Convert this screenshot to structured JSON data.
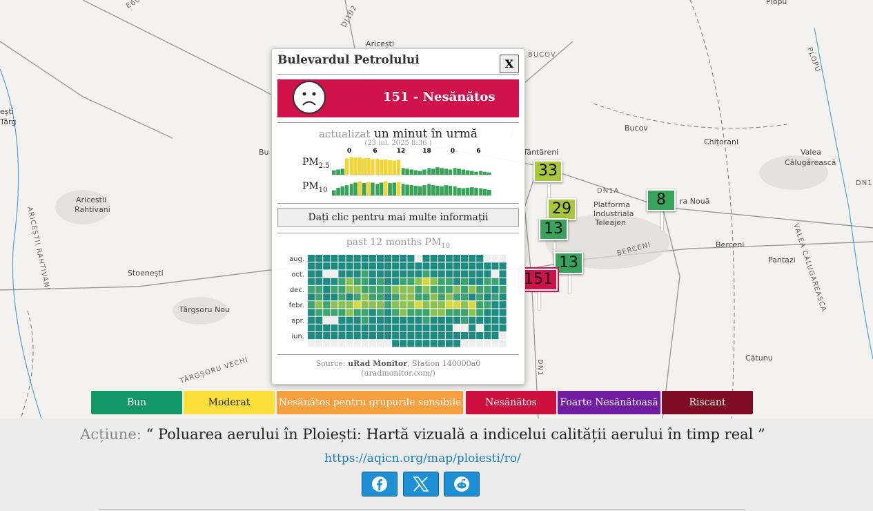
{
  "map": {
    "labels": [
      "E60",
      "DJ102",
      "Aricești",
      "ești",
      "Târg",
      "Bu",
      "ARICEȘTII RAHTIVANI",
      "Aricestii",
      "Rahtivani",
      "Stoenești",
      "Târgșoru Nou",
      "TÂRGȘORU VECHI",
      "BUCOV",
      "Tântăreni",
      "Bucov",
      "Chițorani",
      "Valea",
      "Călugărească",
      "DN1A",
      "Platforma",
      "Industriala",
      "Teleajen",
      "ra Nouă",
      "BERCENI",
      "Berceni",
      "Pantazi",
      "Cătunu",
      "Plopu",
      "PLOPU",
      "VALEA CALUGAREASCA",
      "DN1",
      "DN1"
    ],
    "markers": [
      {
        "value": 33,
        "color": "#a8c73c"
      },
      {
        "value": 29,
        "color": "#a8c73c"
      },
      {
        "value": 8,
        "color": "#3aa35b"
      },
      {
        "value": 13,
        "color": "#3aa35b"
      },
      {
        "value": 13,
        "color": "#3aa35b"
      },
      {
        "value": 151,
        "color": "#d0124a"
      }
    ]
  },
  "popup": {
    "title": "Bulevardul Petrolului",
    "close": "X",
    "aqi_value": 151,
    "aqi_text": "Nesănătos",
    "aqi_color": "#d0124a",
    "updated_label": "actualizat",
    "updated_when": "un minut în urmă",
    "updated_date": "(23 iul. 2025 8:36 )",
    "hour_ticks": [
      0,
      6,
      12,
      18,
      0,
      6
    ],
    "pm25": {
      "label": "PM",
      "sub": "2.5",
      "ylim": [
        0,
        130
      ],
      "values": [
        30,
        35,
        40,
        110,
        120,
        115,
        118,
        110,
        112,
        105,
        108,
        100,
        102,
        98,
        95,
        100,
        45,
        40,
        35,
        30,
        25,
        35,
        45,
        40,
        50,
        45,
        40,
        35,
        45,
        40,
        35,
        30,
        25,
        20,
        25,
        20,
        15
      ]
    },
    "pm10": {
      "label": "PM",
      "sub": "10",
      "ylim": [
        0,
        70
      ],
      "values": [
        20,
        30,
        35,
        40,
        45,
        50,
        55,
        48,
        52,
        50,
        45,
        50,
        55,
        48,
        50,
        52,
        45,
        42,
        40,
        38,
        35,
        40,
        45,
        40,
        38,
        35,
        40,
        38,
        35,
        30,
        28,
        30,
        32,
        30,
        28,
        25,
        22
      ]
    },
    "bar_colors": [
      {
        "min": 0,
        "color": "#3aa35b"
      },
      {
        "min": 51,
        "color": "#f3d53a"
      }
    ],
    "more_button": "Dați clic pentru mai multe informații",
    "history_title": {
      "label": "past 12 months PM",
      "sub": "10"
    },
    "history_months": [
      "aug.",
      "oct.",
      "dec.",
      "febr.",
      "apr.",
      "iun."
    ],
    "history_colors": {
      "1": "#1f8a82",
      "2": "#3da36f",
      "3": "#8cc052",
      "4": "#d8d83c"
    },
    "history_rows": [
      [
        1,
        1,
        1,
        1,
        1,
        1,
        1,
        1,
        1,
        1,
        1,
        1,
        1,
        1,
        null,
        1,
        1,
        1,
        1,
        1,
        1,
        1,
        1,
        null,
        null,
        null
      ],
      [
        1,
        1,
        1,
        1,
        1,
        1,
        1,
        1,
        1,
        1,
        1,
        1,
        1,
        1,
        1,
        1,
        1,
        1,
        1,
        1,
        1,
        1,
        1,
        1,
        1,
        1
      ],
      [
        1,
        1,
        null,
        null,
        1,
        1,
        1,
        2,
        1,
        1,
        1,
        1,
        1,
        1,
        1,
        2,
        1,
        1,
        1,
        1,
        1,
        1,
        1,
        1,
        null,
        1
      ],
      [
        1,
        1,
        1,
        1,
        2,
        3,
        2,
        2,
        1,
        2,
        1,
        1,
        2,
        2,
        3,
        4,
        3,
        2,
        2,
        1,
        2,
        1,
        1,
        2,
        2,
        1
      ],
      [
        2,
        2,
        1,
        2,
        2,
        3,
        3,
        2,
        2,
        2,
        2,
        3,
        3,
        3,
        2,
        3,
        2,
        2,
        2,
        3,
        2,
        3,
        2,
        2,
        1,
        2
      ],
      [
        1,
        2,
        1,
        1,
        2,
        1,
        2,
        3,
        2,
        2,
        1,
        2,
        3,
        3,
        2,
        2,
        3,
        2,
        3,
        2,
        2,
        1,
        2,
        1,
        2,
        1
      ],
      [
        2,
        3,
        2,
        3,
        3,
        3,
        4,
        3,
        3,
        3,
        2,
        3,
        3,
        3,
        4,
        3,
        3,
        3,
        4,
        4,
        3,
        4,
        2,
        2,
        1,
        1
      ],
      [
        1,
        2,
        2,
        2,
        2,
        3,
        2,
        2,
        1,
        2,
        1,
        2,
        3,
        2,
        2,
        2,
        3,
        3,
        2,
        2,
        2,
        3,
        2,
        1,
        1,
        1
      ],
      [
        1,
        1,
        null,
        null,
        1,
        1,
        1,
        2,
        1,
        1,
        1,
        1,
        1,
        1,
        1,
        2,
        1,
        1,
        1,
        1,
        2,
        1,
        1,
        1,
        1,
        1
      ],
      [
        1,
        1,
        1,
        1,
        1,
        1,
        1,
        1,
        1,
        1,
        1,
        1,
        1,
        1,
        1,
        1,
        1,
        1,
        1,
        null,
        null,
        1,
        null,
        1,
        1,
        1
      ],
      [
        1,
        1,
        1,
        1,
        1,
        1,
        1,
        1,
        1,
        1,
        1,
        1,
        1,
        1,
        1,
        1,
        1,
        1,
        1,
        1,
        1,
        1,
        1,
        1,
        1,
        null
      ],
      [
        null,
        null,
        null,
        null,
        null,
        null,
        null,
        null,
        null,
        null,
        null,
        1,
        1,
        1,
        1,
        1,
        1,
        1,
        1,
        1,
        null,
        null,
        null,
        null,
        null,
        null
      ]
    ],
    "source_prefix": "Source:",
    "source_name": "uRad Monitor",
    "source_station": ", Station 140000a0",
    "source_url": "(uradmonitor.com/)"
  },
  "legend": [
    {
      "label": "Bun",
      "color": "#12976a",
      "text_color": "#ffffff"
    },
    {
      "label": "Moderat",
      "color": "#fbdf3a",
      "text_color": "#222222"
    },
    {
      "label": "Nesănătos pentru grupurile sensibile",
      "color": "#f8a03f",
      "text_color": "#ffffff"
    },
    {
      "label": "Nesănătos",
      "color": "#cc0f3e",
      "text_color": "#ffffff"
    },
    {
      "label": "Foarte Nesănătoasă",
      "color": "#6f1ca0",
      "text_color": "#ffffff"
    },
    {
      "label": "Riscant",
      "color": "#7e0a23",
      "text_color": "#ffffff"
    }
  ],
  "footer": {
    "action_label": "Acțiune:",
    "action_text": "“ Poluarea aerului în Ploiești: Hartă vizuală a indicelui calității aerului în timp real ”",
    "url": "https://aqicn.org/map/ploiesti/ro/"
  }
}
